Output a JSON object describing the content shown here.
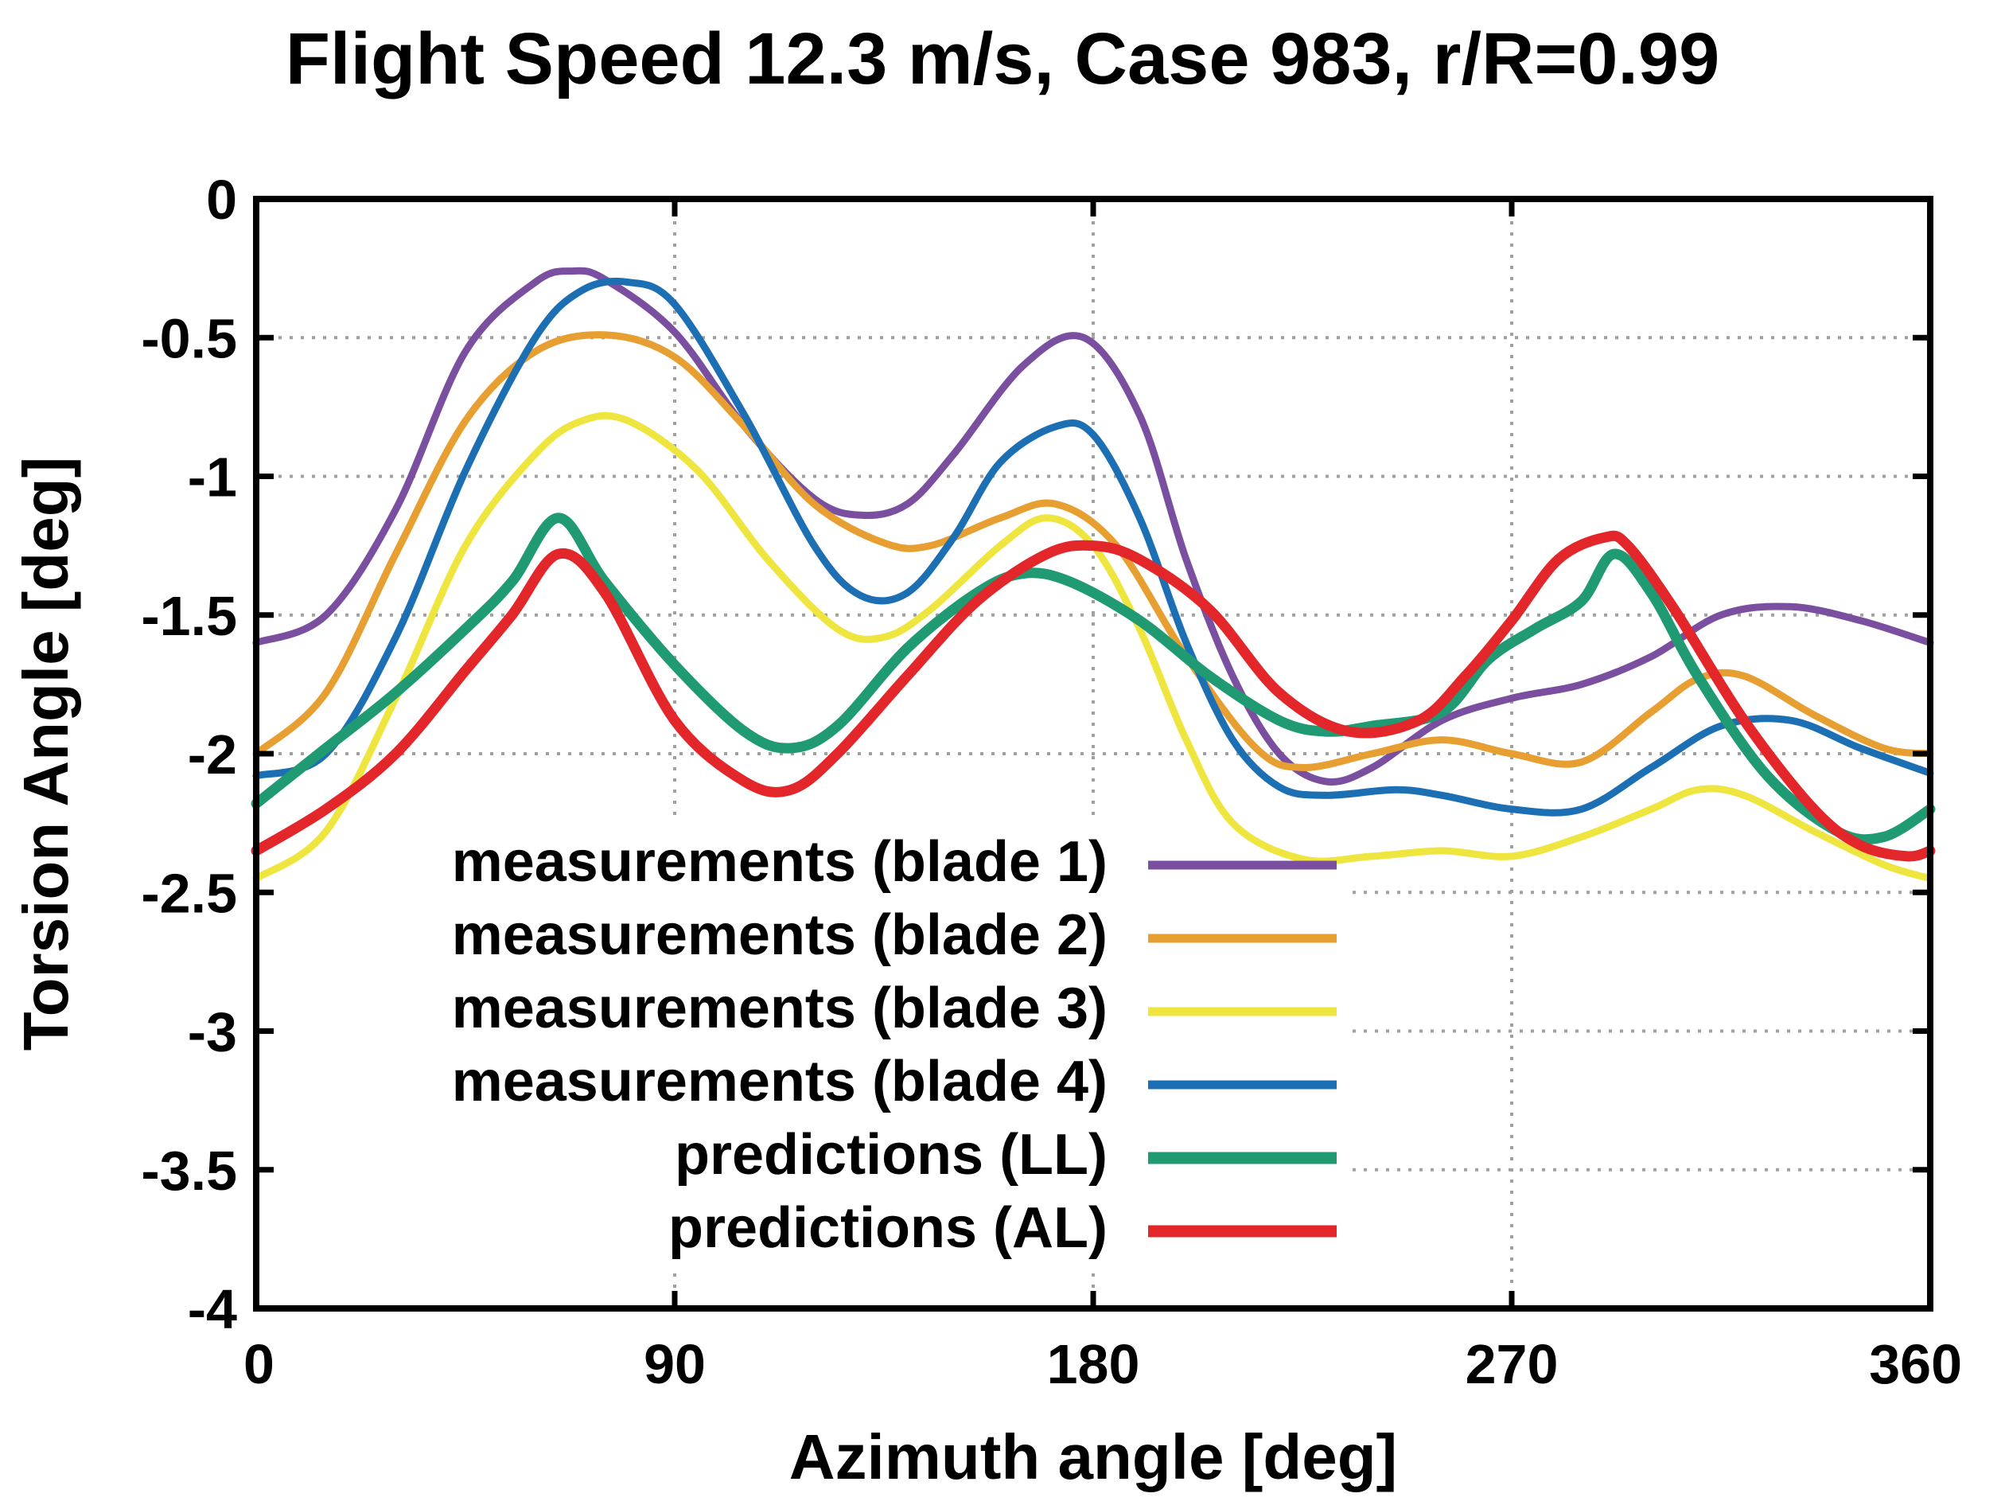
{
  "chart_data": {
    "type": "line",
    "title": "Flight Speed 12.3 m/s, Case 983, r/R=0.99",
    "xlabel": "Azimuth angle [deg]",
    "ylabel": "Torsion Angle [deg]",
    "xlim": [
      0,
      360
    ],
    "ylim": [
      -4,
      0
    ],
    "xticks": [
      0,
      90,
      180,
      270,
      360
    ],
    "xtick_labels": [
      "0",
      "90",
      "180",
      "270",
      "360"
    ],
    "yticks": [
      0,
      -0.5,
      -1,
      -1.5,
      -2,
      -2.5,
      -3,
      -3.5,
      -4
    ],
    "ytick_labels": [
      "0",
      "-0.5",
      "-1",
      "-1.5",
      "-2",
      "-2.5",
      "-3",
      "-3.5",
      "-4"
    ],
    "grid": true,
    "legend_position": "bottom-left",
    "series": [
      {
        "name": "measurements (blade 1)",
        "color": "#7b4fa0",
        "x": [
          0,
          15,
          30,
          45,
          60,
          68,
          75,
          90,
          105,
          120,
          130,
          140,
          150,
          165,
          178,
          190,
          200,
          210,
          220,
          230,
          240,
          255,
          270,
          285,
          300,
          315,
          330,
          345,
          360
        ],
        "y": [
          -1.6,
          -1.5,
          -1.12,
          -0.55,
          -0.3,
          -0.26,
          -0.29,
          -0.48,
          -0.82,
          -1.08,
          -1.14,
          -1.1,
          -0.92,
          -0.6,
          -0.5,
          -0.78,
          -1.3,
          -1.72,
          -2.0,
          -2.1,
          -2.05,
          -1.88,
          -1.8,
          -1.75,
          -1.65,
          -1.5,
          -1.47,
          -1.52,
          -1.6
        ]
      },
      {
        "name": "measurements (blade 2)",
        "color": "#e79f31",
        "x": [
          0,
          15,
          30,
          45,
          60,
          75,
          90,
          105,
          120,
          135,
          145,
          160,
          172,
          185,
          200,
          215,
          225,
          240,
          255,
          270,
          285,
          300,
          310,
          320,
          335,
          350,
          360
        ],
        "y": [
          -2.0,
          -1.78,
          -1.28,
          -0.8,
          -0.55,
          -0.49,
          -0.57,
          -0.82,
          -1.1,
          -1.24,
          -1.25,
          -1.15,
          -1.1,
          -1.25,
          -1.65,
          -1.98,
          -2.05,
          -2.0,
          -1.95,
          -2.0,
          -2.03,
          -1.85,
          -1.73,
          -1.72,
          -1.86,
          -1.98,
          -2.0
        ]
      },
      {
        "name": "measurements (blade 3)",
        "color": "#eee53f",
        "x": [
          0,
          15,
          30,
          45,
          60,
          70,
          80,
          95,
          110,
          125,
          135,
          145,
          160,
          170,
          180,
          190,
          200,
          210,
          225,
          240,
          255,
          270,
          285,
          300,
          310,
          320,
          335,
          350,
          360
        ],
        "y": [
          -2.45,
          -2.28,
          -1.8,
          -1.25,
          -0.92,
          -0.8,
          -0.8,
          -0.98,
          -1.3,
          -1.55,
          -1.58,
          -1.48,
          -1.25,
          -1.15,
          -1.25,
          -1.55,
          -1.95,
          -2.25,
          -2.38,
          -2.37,
          -2.35,
          -2.37,
          -2.3,
          -2.2,
          -2.13,
          -2.15,
          -2.28,
          -2.4,
          -2.45
        ]
      },
      {
        "name": "measurements (blade 4)",
        "color": "#1c6fb3",
        "x": [
          0,
          15,
          30,
          45,
          60,
          70,
          80,
          90,
          105,
          120,
          130,
          140,
          150,
          160,
          172,
          180,
          190,
          200,
          210,
          220,
          230,
          245,
          255,
          270,
          285,
          300,
          315,
          330,
          345,
          360
        ],
        "y": [
          -2.08,
          -2.0,
          -1.58,
          -0.98,
          -0.5,
          -0.33,
          -0.3,
          -0.38,
          -0.78,
          -1.25,
          -1.43,
          -1.42,
          -1.22,
          -0.95,
          -0.82,
          -0.85,
          -1.15,
          -1.6,
          -1.95,
          -2.12,
          -2.15,
          -2.13,
          -2.15,
          -2.2,
          -2.2,
          -2.05,
          -1.9,
          -1.88,
          -1.98,
          -2.07
        ]
      },
      {
        "name": "predictions (LL)",
        "color": "#1f9a72",
        "x": [
          0,
          15,
          30,
          45,
          55,
          65,
          75,
          90,
          105,
          115,
          125,
          140,
          155,
          165,
          175,
          190,
          205,
          220,
          230,
          240,
          255,
          265,
          275,
          285,
          292,
          300,
          310,
          325,
          340,
          350,
          360
        ],
        "y": [
          -2.18,
          -1.98,
          -1.78,
          -1.55,
          -1.38,
          -1.15,
          -1.38,
          -1.68,
          -1.92,
          -1.98,
          -1.9,
          -1.62,
          -1.42,
          -1.35,
          -1.38,
          -1.52,
          -1.72,
          -1.88,
          -1.92,
          -1.9,
          -1.85,
          -1.66,
          -1.55,
          -1.45,
          -1.28,
          -1.42,
          -1.72,
          -2.08,
          -2.28,
          -2.3,
          -2.2
        ]
      },
      {
        "name": "predictions (AL)",
        "color": "#e3262a",
        "x": [
          0,
          15,
          30,
          45,
          55,
          65,
          75,
          90,
          105,
          115,
          125,
          140,
          155,
          170,
          180,
          190,
          205,
          220,
          235,
          250,
          260,
          270,
          280,
          290,
          295,
          305,
          320,
          335,
          345,
          355,
          360
        ],
        "y": [
          -2.35,
          -2.2,
          -2.0,
          -1.7,
          -1.5,
          -1.28,
          -1.42,
          -1.88,
          -2.1,
          -2.13,
          -2.0,
          -1.72,
          -1.45,
          -1.28,
          -1.25,
          -1.3,
          -1.48,
          -1.78,
          -1.92,
          -1.88,
          -1.72,
          -1.52,
          -1.3,
          -1.22,
          -1.25,
          -1.48,
          -1.88,
          -2.2,
          -2.33,
          -2.37,
          -2.35
        ]
      }
    ]
  }
}
